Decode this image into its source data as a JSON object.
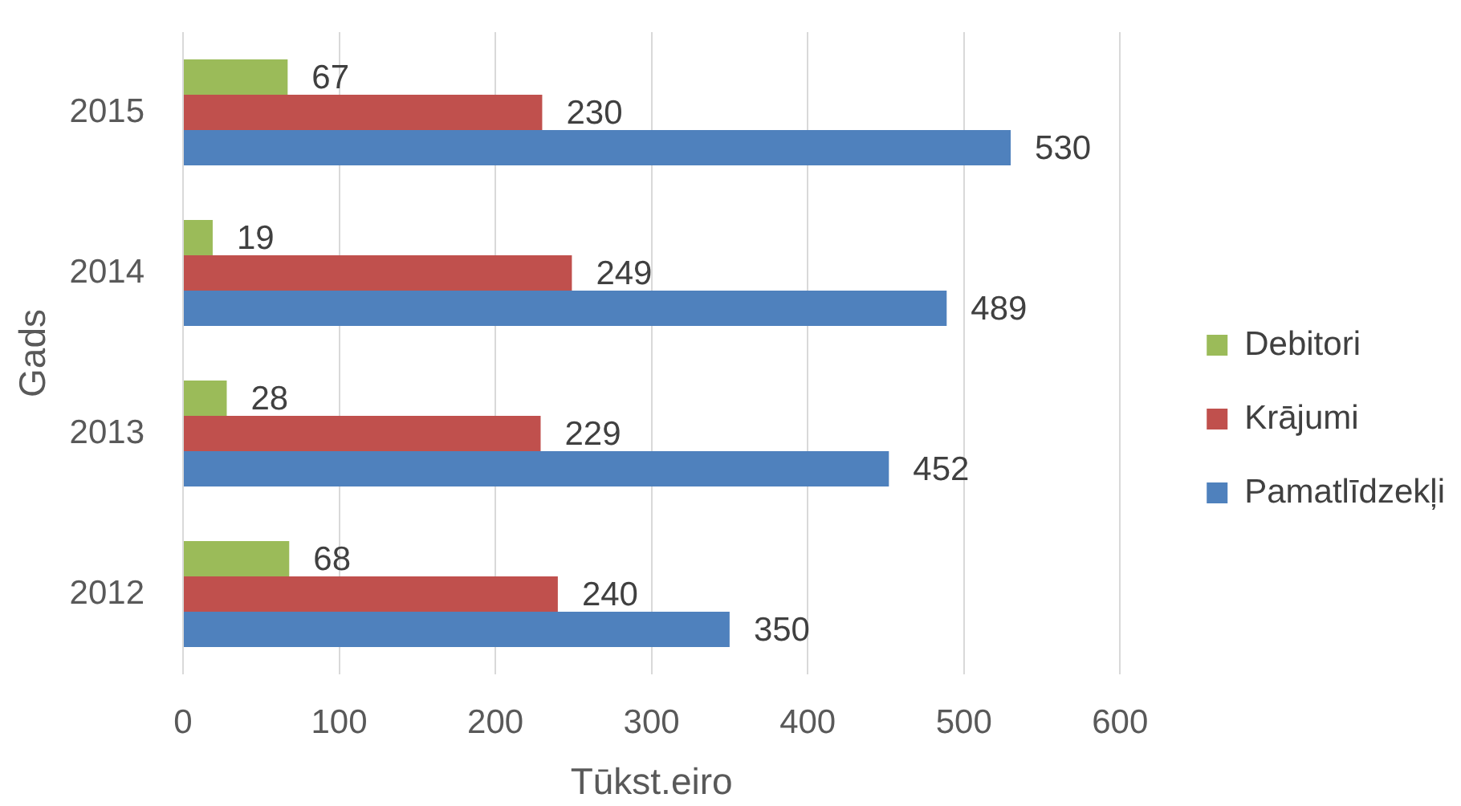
{
  "chart_data": {
    "type": "bar",
    "orientation": "horizontal",
    "categories": [
      "2015",
      "2014",
      "2013",
      "2012"
    ],
    "series": [
      {
        "name": "Debitori",
        "color": "#9bbb59",
        "values": [
          67,
          19,
          28,
          68
        ]
      },
      {
        "name": "Krājumi",
        "color": "#c0504d",
        "values": [
          230,
          249,
          229,
          240
        ]
      },
      {
        "name": "Pamatlīdzekļi",
        "color": "#4f81bd",
        "values": [
          530,
          489,
          452,
          350
        ]
      }
    ],
    "xlabel": "Tūkst.eiro",
    "ylabel": "Gads",
    "xlim": [
      0,
      600
    ],
    "xticks": [
      0,
      100,
      200,
      300,
      400,
      500,
      600
    ],
    "grid": "x",
    "legend": "right",
    "data_labels": true
  }
}
